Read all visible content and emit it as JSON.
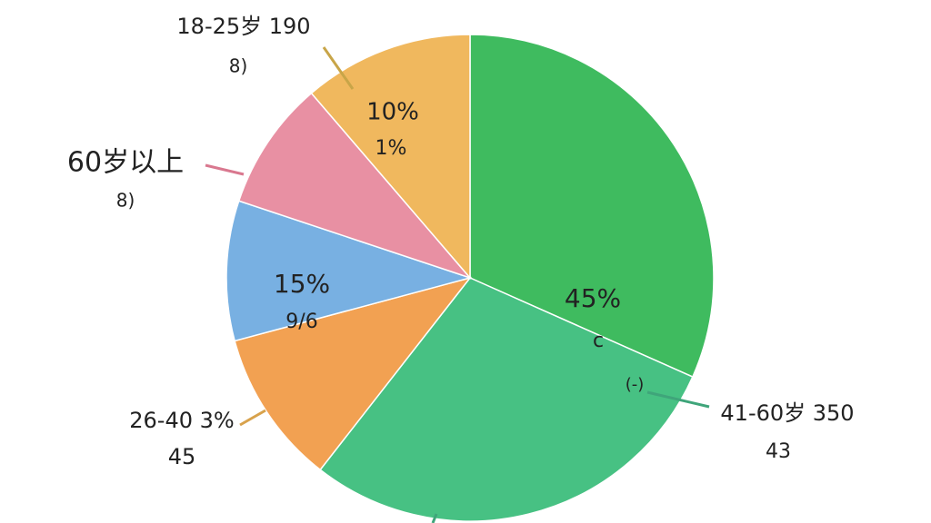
{
  "chart_data": {
    "type": "pie",
    "categories": [
      null,
      null,
      null,
      null,
      null,
      null
    ],
    "values": [
      31.7,
      28.9,
      10.3,
      9.3,
      8.6,
      11.3
    ],
    "colors": [
      "#3fbb5f",
      "#47c183",
      "#f2a152",
      "#78b0e2",
      "#e890a3",
      "#f0b85e"
    ],
    "annotations": [
      "18-25岁 190",
      "8)",
      "10%",
      "1%",
      "60岁以上",
      "8)",
      "15%",
      "9/6",
      "45%",
      "c",
      "(-)",
      "41-60岁 350",
      "43",
      "26-40 3%",
      "45"
    ]
  }
}
